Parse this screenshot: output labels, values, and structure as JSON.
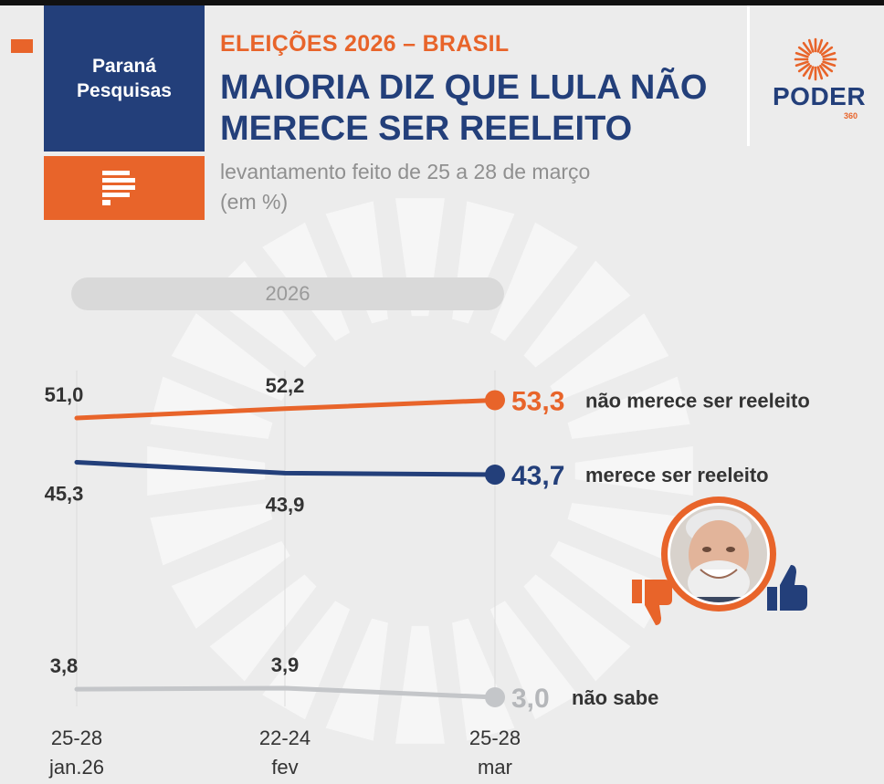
{
  "brand": {
    "name_line1": "Paraná",
    "name_line2": "Pesquisas"
  },
  "header": {
    "eyebrow": "ELEIÇÕES 2026 – BRASIL",
    "headline": "MAIORIA DIZ QUE LULA NÃO MERECE SER REELEITO",
    "subtitle_line1": "levantamento feito de 25 a 28 de março",
    "subtitle_line2": "(em %)"
  },
  "poder": {
    "word": "PODER",
    "number": "360"
  },
  "colors": {
    "orange": "#e8642a",
    "navy": "#233f7a",
    "gray": "#c4c6c9",
    "gray_label": "#b5b7ba",
    "text": "#333333"
  },
  "chart_data": {
    "type": "line",
    "title": "MAIORIA DIZ QUE LULA NÃO MERECE SER REELEITO",
    "period_label": "2026",
    "categories": [
      {
        "line1": "25-28",
        "line2": "jan.26"
      },
      {
        "line1": "22-24",
        "line2": "fev"
      },
      {
        "line1": "25-28",
        "line2": "mar"
      }
    ],
    "series": [
      {
        "name": "não merece ser reeleito",
        "color": "#e8642a",
        "values": [
          51.0,
          52.2,
          53.3
        ],
        "labels": [
          "51,0",
          "52,2",
          "53,3"
        ]
      },
      {
        "name": "merece ser reeleito",
        "color": "#233f7a",
        "values": [
          45.3,
          43.9,
          43.7
        ],
        "labels": [
          "45,3",
          "43,9",
          "43,7"
        ]
      },
      {
        "name": "não sabe",
        "color": "#c4c6c9",
        "values": [
          3.8,
          3.9,
          3.0
        ],
        "labels": [
          "3,8",
          "3,9",
          "3,0"
        ]
      }
    ],
    "xlabel": "",
    "ylabel": "%",
    "ylim": [
      0,
      60
    ]
  }
}
